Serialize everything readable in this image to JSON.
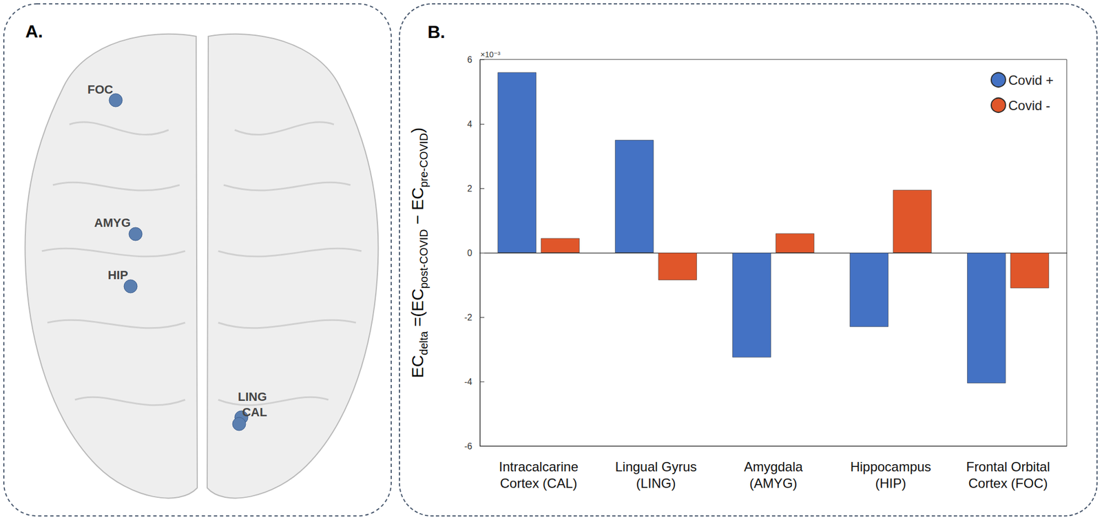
{
  "panel_labels": [
    "A.",
    "B."
  ],
  "brain_regions": [
    "FOC",
    "AMYG",
    "HIP",
    "LING",
    "CAL"
  ],
  "chart_data": {
    "type": "bar",
    "y_label": [
      "EC",
      "delta",
      " =(EC",
      "post-COVID",
      " − EC",
      "pre-COVID",
      ")"
    ],
    "y_exponent_label": "×10⁻³",
    "categories": [
      "Intracalcarine\nCortex (CAL)",
      "Lingual Gyrus\n(LING)",
      "Amygdala\n(AMYG)",
      "Hippocampus\n(HIP)",
      "Frontal Orbital\nCortex (FOC)"
    ],
    "series": [
      {
        "name": "Covid +",
        "color": "#4472c4",
        "values": [
          5.6,
          3.5,
          -3.25,
          -2.3,
          -4.05
        ]
      },
      {
        "name": "Covid -",
        "color": "#e0562a",
        "values": [
          0.45,
          -0.85,
          0.6,
          1.95,
          -1.1
        ]
      }
    ],
    "ylim": [
      -6,
      6
    ],
    "yticks": [
      -6,
      -4,
      -2,
      0,
      2,
      4,
      6
    ],
    "grid": false,
    "legend": "upper right"
  }
}
